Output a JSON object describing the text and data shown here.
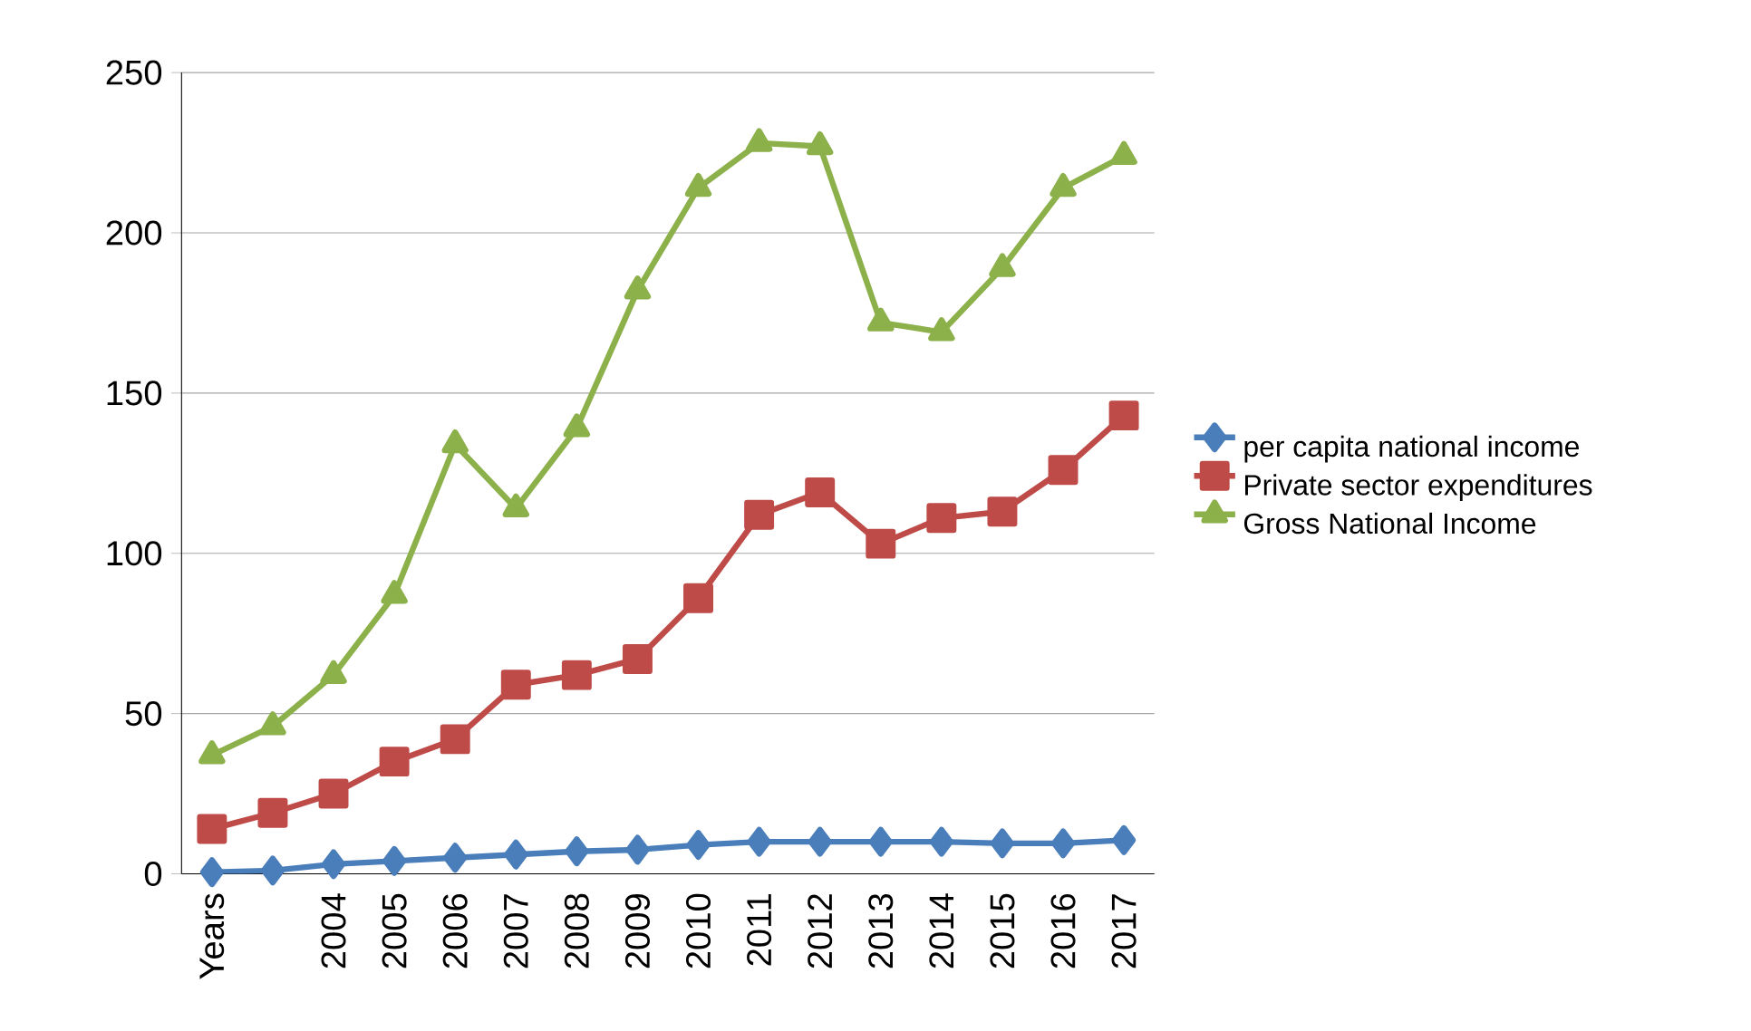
{
  "chart_data": {
    "type": "line",
    "categories": [
      "Years",
      null,
      "2004",
      "2005",
      "2006",
      "2007",
      "2008",
      "2009",
      "2010",
      "2011",
      "2012",
      "2013",
      "2014",
      "2015",
      "2016",
      "2017"
    ],
    "series": [
      {
        "name": "per capita national income",
        "color": "#4a7ebb",
        "marker": "diamond",
        "values": [
          0.5,
          1,
          3,
          4,
          5,
          6,
          7,
          7.5,
          9,
          10,
          10,
          10,
          10,
          9.5,
          9.5,
          10.5
        ]
      },
      {
        "name": "Private sector expenditures",
        "color": "#be4b48",
        "marker": "square",
        "values": [
          14,
          19,
          25,
          35,
          42,
          59,
          62,
          67,
          86,
          112,
          119,
          103,
          111,
          113,
          126,
          143
        ]
      },
      {
        "name": "Gross National Income",
        "color": "#8cb04a",
        "marker": "triangle",
        "values": [
          37,
          46,
          62,
          87,
          134,
          114,
          139,
          182,
          214,
          228,
          227,
          172,
          169,
          189,
          214,
          224
        ]
      }
    ],
    "ylim": [
      0,
      250
    ],
    "yticks": [
      0,
      50,
      100,
      150,
      200,
      250
    ],
    "grid": "y",
    "legend": "right"
  }
}
